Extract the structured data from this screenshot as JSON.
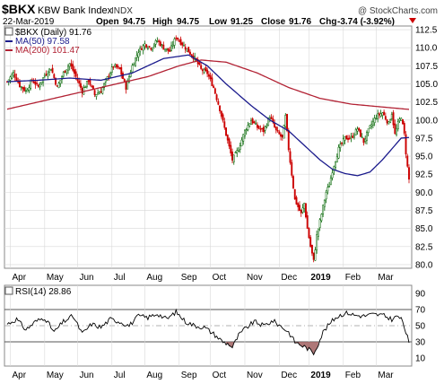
{
  "header": {
    "symbol": "$BKX",
    "name": "KBW Bank Index",
    "exchange": "INDX",
    "date": "22-Mar-2019",
    "open_label": "Open",
    "open": "94.75",
    "high_label": "High",
    "high": "94.75",
    "low_label": "Low",
    "low": "91.25",
    "close_label": "Close",
    "close": "91.76",
    "chg_label": "Chg",
    "chg": "-3.74 (-3.92%)",
    "watermark": "@ StockCharts.com"
  },
  "legend": {
    "price": "$BKX (Daily) 91.76",
    "ma50": "MA(50) 97.58",
    "ma200": "MA(200) 101.47",
    "rsi": "RSI(14) 28.86"
  },
  "colors": {
    "price": "#006400",
    "price_down": "#cc0000",
    "ma50": "#1a1a8c",
    "ma200": "#b22234",
    "rsi_line": "#000000",
    "rsi_oversold_fill": "#a06060",
    "grid": "#d8d8d8",
    "frame": "#888888"
  },
  "chart_data": [
    {
      "type": "line",
      "series_kind": "price (daily, candlestick-style)",
      "ylim": [
        79.5,
        113.0
      ],
      "y_ticks": [
        "112.5",
        "110.0",
        "107.5",
        "105.0",
        "102.5",
        "100.0",
        "97.5",
        "95.0",
        "92.5",
        "90.0",
        "87.5",
        "85.0",
        "82.5",
        "80.0"
      ],
      "y_tick_values": [
        112.5,
        110.0,
        107.5,
        105.0,
        102.5,
        100.0,
        97.5,
        95.0,
        92.5,
        90.0,
        87.5,
        85.0,
        82.5,
        80.0
      ],
      "x_ticks": [
        "Apr",
        "May",
        "Jun",
        "Jul",
        "Aug",
        "Sep",
        "Oct",
        "Nov",
        "Dec",
        "2019",
        "Feb",
        "Mar"
      ],
      "grid": true,
      "price_anchors": [
        [
          0,
          105.3
        ],
        [
          4,
          106.5
        ],
        [
          8,
          104.8
        ],
        [
          12,
          104.0
        ],
        [
          16,
          105.5
        ],
        [
          20,
          104.6
        ],
        [
          24,
          106.2
        ],
        [
          28,
          107.2
        ],
        [
          32,
          104.5
        ],
        [
          36,
          106.5
        ],
        [
          40,
          107.8
        ],
        [
          44,
          106.0
        ],
        [
          48,
          104.0
        ],
        [
          52,
          105.5
        ],
        [
          56,
          103.5
        ],
        [
          60,
          104.0
        ],
        [
          64,
          105.8
        ],
        [
          68,
          107.5
        ],
        [
          72,
          107.0
        ],
        [
          76,
          104.5
        ],
        [
          80,
          107.5
        ],
        [
          84,
          109.5
        ],
        [
          88,
          110.5
        ],
        [
          92,
          110.0
        ],
        [
          96,
          111.0
        ],
        [
          100,
          110.0
        ],
        [
          104,
          109.5
        ],
        [
          108,
          111.5
        ],
        [
          112,
          110.5
        ],
        [
          116,
          109.5
        ],
        [
          120,
          108.5
        ],
        [
          124,
          107.0
        ],
        [
          128,
          106.5
        ],
        [
          132,
          104.5
        ],
        [
          136,
          101.5
        ],
        [
          140,
          98.0
        ],
        [
          144,
          94.5
        ],
        [
          148,
          96.0
        ],
        [
          152,
          98.5
        ],
        [
          156,
          100.0
        ],
        [
          160,
          99.0
        ],
        [
          164,
          98.5
        ],
        [
          168,
          100.5
        ],
        [
          172,
          98.5
        ],
        [
          176,
          97.5
        ],
        [
          178,
          100.5
        ],
        [
          180,
          96.0
        ],
        [
          184,
          89.0
        ],
        [
          188,
          87.0
        ],
        [
          190,
          88.5
        ],
        [
          192,
          85.0
        ],
        [
          194,
          82.5
        ],
        [
          196,
          80.5
        ],
        [
          198,
          84.0
        ],
        [
          200,
          86.0
        ],
        [
          202,
          88.0
        ],
        [
          204,
          90.0
        ],
        [
          206,
          91.0
        ],
        [
          208,
          93.0
        ],
        [
          212,
          96.0
        ],
        [
          216,
          97.5
        ],
        [
          220,
          97.5
        ],
        [
          224,
          98.8
        ],
        [
          228,
          97.0
        ],
        [
          232,
          99.0
        ],
        [
          236,
          100.5
        ],
        [
          240,
          101.0
        ],
        [
          244,
          99.5
        ],
        [
          246,
          101.0
        ],
        [
          248,
          98.0
        ],
        [
          250,
          99.5
        ],
        [
          252,
          100.5
        ],
        [
          254,
          98.0
        ],
        [
          255,
          95.5
        ],
        [
          256,
          93.5
        ],
        [
          257,
          91.76
        ]
      ],
      "ma50_anchors": [
        [
          0,
          105.3
        ],
        [
          20,
          105.5
        ],
        [
          40,
          105.8
        ],
        [
          60,
          105.5
        ],
        [
          80,
          106.5
        ],
        [
          100,
          108.5
        ],
        [
          116,
          109.0
        ],
        [
          128,
          107.5
        ],
        [
          140,
          105.0
        ],
        [
          156,
          102.0
        ],
        [
          168,
          100.0
        ],
        [
          180,
          98.5
        ],
        [
          190,
          96.5
        ],
        [
          200,
          94.5
        ],
        [
          208,
          93.2
        ],
        [
          216,
          92.6
        ],
        [
          224,
          92.3
        ],
        [
          232,
          92.8
        ],
        [
          240,
          94.5
        ],
        [
          248,
          96.5
        ],
        [
          252,
          97.5
        ],
        [
          257,
          97.58
        ]
      ],
      "ma200_anchors": [
        [
          0,
          101.5
        ],
        [
          30,
          103.0
        ],
        [
          60,
          104.5
        ],
        [
          90,
          106.0
        ],
        [
          110,
          107.5
        ],
        [
          124,
          108.3
        ],
        [
          140,
          108.0
        ],
        [
          160,
          106.5
        ],
        [
          180,
          104.5
        ],
        [
          200,
          103.0
        ],
        [
          220,
          102.2
        ],
        [
          240,
          101.8
        ],
        [
          257,
          101.47
        ]
      ]
    },
    {
      "type": "line",
      "title": "RSI(14) 28.86",
      "ylim": [
        0,
        100
      ],
      "y_ticks": [
        "90",
        "70",
        "50",
        "30",
        "10"
      ],
      "y_tick_values": [
        90,
        70,
        50,
        30,
        10
      ],
      "reference_lines": [
        70,
        50,
        30
      ],
      "x_ticks": [
        "Apr",
        "May",
        "Jun",
        "Jul",
        "Aug",
        "Sep",
        "Oct",
        "Nov",
        "Dec",
        "2019",
        "Feb",
        "Mar"
      ],
      "rsi_anchors": [
        [
          0,
          52
        ],
        [
          6,
          58
        ],
        [
          12,
          45
        ],
        [
          18,
          55
        ],
        [
          24,
          60
        ],
        [
          30,
          42
        ],
        [
          36,
          55
        ],
        [
          42,
          62
        ],
        [
          48,
          40
        ],
        [
          54,
          52
        ],
        [
          60,
          48
        ],
        [
          66,
          58
        ],
        [
          72,
          55
        ],
        [
          78,
          50
        ],
        [
          84,
          62
        ],
        [
          90,
          60
        ],
        [
          96,
          65
        ],
        [
          102,
          58
        ],
        [
          108,
          67
        ],
        [
          114,
          55
        ],
        [
          120,
          50
        ],
        [
          126,
          48
        ],
        [
          132,
          40
        ],
        [
          138,
          30
        ],
        [
          142,
          27
        ],
        [
          144,
          23
        ],
        [
          148,
          38
        ],
        [
          152,
          46
        ],
        [
          158,
          55
        ],
        [
          164,
          50
        ],
        [
          170,
          56
        ],
        [
          176,
          48
        ],
        [
          180,
          42
        ],
        [
          184,
          30
        ],
        [
          188,
          26
        ],
        [
          192,
          22
        ],
        [
          196,
          16
        ],
        [
          199,
          28
        ],
        [
          202,
          42
        ],
        [
          206,
          52
        ],
        [
          210,
          60
        ],
        [
          214,
          64
        ],
        [
          218,
          66
        ],
        [
          222,
          63
        ],
        [
          228,
          62
        ],
        [
          234,
          64
        ],
        [
          240,
          63
        ],
        [
          246,
          58
        ],
        [
          250,
          62
        ],
        [
          253,
          55
        ],
        [
          255,
          42
        ],
        [
          257,
          28.86
        ]
      ]
    }
  ]
}
